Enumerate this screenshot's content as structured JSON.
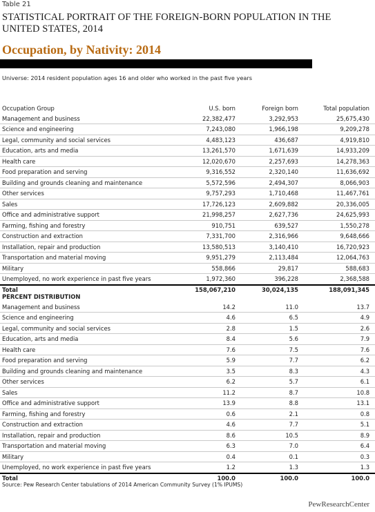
{
  "header": {
    "table_number": "Table 21",
    "title": "STATISTICAL PORTRAIT OF THE FOREIGN-BORN POPULATION IN THE UNITED STATES, 2014",
    "subtitle": "Occupation, by Nativity: 2014",
    "universe": "Universe: 2014 resident population ages 16 and older who worked in the past five years"
  },
  "counts_table": {
    "columns": [
      "Occupation Group",
      "U.S. born",
      "Foreign born",
      "Total population"
    ],
    "rows": [
      [
        "Management and business",
        "22,382,477",
        "3,292,953",
        "25,675,430"
      ],
      [
        "Science and engineering",
        "7,243,080",
        "1,966,198",
        "9,209,278"
      ],
      [
        "Legal, community and social services",
        "4,483,123",
        "436,687",
        "4,919,810"
      ],
      [
        "Education, arts and media",
        "13,261,570",
        "1,671,639",
        "14,933,209"
      ],
      [
        "Health care",
        "12,020,670",
        "2,257,693",
        "14,278,363"
      ],
      [
        "Food preparation and serving",
        "9,316,552",
        "2,320,140",
        "11,636,692"
      ],
      [
        "Building and grounds cleaning and maintenance",
        "5,572,596",
        "2,494,307",
        "8,066,903"
      ],
      [
        "Other services",
        "9,757,293",
        "1,710,468",
        "11,467,761"
      ],
      [
        "Sales",
        "17,726,123",
        "2,609,882",
        "20,336,005"
      ],
      [
        "Office and administrative support",
        "21,998,257",
        "2,627,736",
        "24,625,993"
      ],
      [
        "Farming, fishing and forestry",
        "910,751",
        "639,527",
        "1,550,278"
      ],
      [
        "Construction and extraction",
        "7,331,700",
        "2,316,966",
        "9,648,666"
      ],
      [
        "Installation, repair and production",
        "13,580,513",
        "3,140,410",
        "16,720,923"
      ],
      [
        "Transportation and material moving",
        "9,951,279",
        "2,113,484",
        "12,064,763"
      ],
      [
        "Military",
        "558,866",
        "29,817",
        "588,683"
      ],
      [
        "Unemployed, no work experience in past five years",
        "1,972,360",
        "396,228",
        "2,368,588"
      ]
    ],
    "total": [
      "Total",
      "158,067,210",
      "30,024,135",
      "188,091,345"
    ]
  },
  "percent_table": {
    "heading": "PERCENT DISTRIBUTION",
    "rows": [
      [
        "Management and business",
        "14.2",
        "11.0",
        "13.7"
      ],
      [
        "Science and engineering",
        "4.6",
        "6.5",
        "4.9"
      ],
      [
        "Legal, community and social services",
        "2.8",
        "1.5",
        "2.6"
      ],
      [
        "Education, arts and media",
        "8.4",
        "5.6",
        "7.9"
      ],
      [
        "Health care",
        "7.6",
        "7.5",
        "7.6"
      ],
      [
        "Food preparation and serving",
        "5.9",
        "7.7",
        "6.2"
      ],
      [
        "Building and grounds cleaning and maintenance",
        "3.5",
        "8.3",
        "4.3"
      ],
      [
        "Other services",
        "6.2",
        "5.7",
        "6.1"
      ],
      [
        "Sales",
        "11.2",
        "8.7",
        "10.8"
      ],
      [
        "Office and administrative  support",
        "13.9",
        "8.8",
        "13.1"
      ],
      [
        "Farming, fishing and forestry",
        "0.6",
        "2.1",
        "0.8"
      ],
      [
        "Construction and extraction",
        "4.6",
        "7.7",
        "5.1"
      ],
      [
        "Installation, repair and production",
        "8.6",
        "10.5",
        "8.9"
      ],
      [
        "Transportation and material moving",
        "6.3",
        "7.0",
        "6.4"
      ],
      [
        "Military",
        "0.4",
        "0.1",
        "0.3"
      ],
      [
        "Unemployed, no work experience in past five years",
        "1.2",
        "1.3",
        "1.3"
      ]
    ],
    "total": [
      "Total",
      "100.0",
      "100.0",
      "100.0"
    ]
  },
  "footer": {
    "source": "Source: Pew Research Center tabulations of 2014 American Community Survey (1% IPUMS)",
    "logo": "PewResearchCenter"
  },
  "colors": {
    "subtitle": "#b86a12",
    "bar": "#000000",
    "rule": "#c9c9c9"
  }
}
